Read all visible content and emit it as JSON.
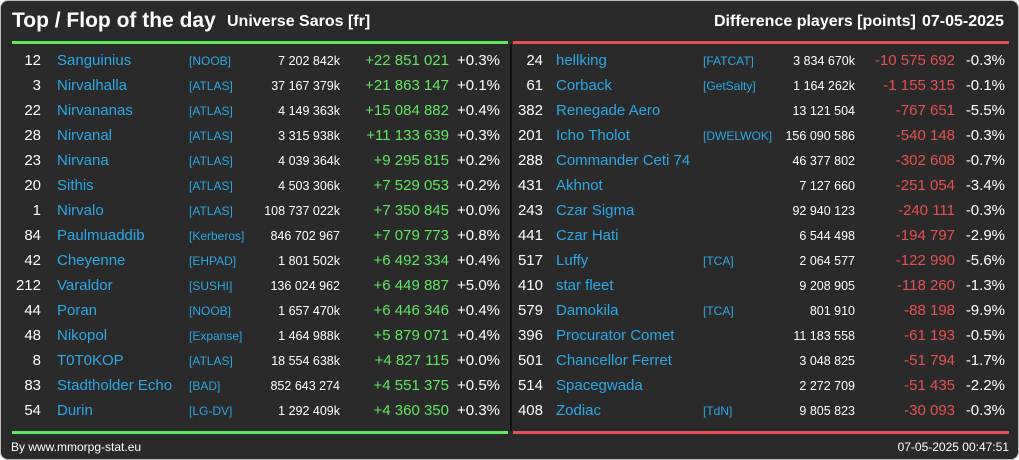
{
  "header": {
    "title": "Top / Flop of the day",
    "universe": "Universe Saros [fr]",
    "metric": "Difference players [points]",
    "date": "07-05-2025"
  },
  "colors": {
    "background": "#2a2a2a",
    "top_accent": "#5ee85e",
    "flop_accent": "#e65050",
    "link": "#29a9e8"
  },
  "top": [
    {
      "rank": "12",
      "name": "Sanguinius",
      "alliance": "[NOOB]",
      "points": "7 202 842k",
      "diff": "+22 851 021",
      "pct": "+0.3%"
    },
    {
      "rank": "3",
      "name": "Nirvalhalla",
      "alliance": "[ATLAS]",
      "points": "37 167 379k",
      "diff": "+21 863 147",
      "pct": "+0.1%"
    },
    {
      "rank": "22",
      "name": "Nirvananas",
      "alliance": "[ATLAS]",
      "points": "4 149 363k",
      "diff": "+15 084 882",
      "pct": "+0.4%"
    },
    {
      "rank": "28",
      "name": "Nirvanal",
      "alliance": "[ATLAS]",
      "points": "3 315 938k",
      "diff": "+11 133 639",
      "pct": "+0.3%"
    },
    {
      "rank": "23",
      "name": "Nirvana",
      "alliance": "[ATLAS]",
      "points": "4 039 364k",
      "diff": "+9 295 815",
      "pct": "+0.2%"
    },
    {
      "rank": "20",
      "name": "Sithis",
      "alliance": "[ATLAS]",
      "points": "4 503 306k",
      "diff": "+7 529 053",
      "pct": "+0.2%"
    },
    {
      "rank": "1",
      "name": "Nirvalo",
      "alliance": "[ATLAS]",
      "points": "108 737 022k",
      "diff": "+7 350 845",
      "pct": "+0.0%"
    },
    {
      "rank": "84",
      "name": "Paulmuaddib",
      "alliance": "[Kerberos]",
      "points": "846 702 967",
      "diff": "+7 079 773",
      "pct": "+0.8%"
    },
    {
      "rank": "42",
      "name": "Cheyenne",
      "alliance": "[EHPAD]",
      "points": "1 801 502k",
      "diff": "+6 492 334",
      "pct": "+0.4%"
    },
    {
      "rank": "212",
      "name": "Varaldor",
      "alliance": "[SUSHI]",
      "points": "136 024 962",
      "diff": "+6 449 887",
      "pct": "+5.0%"
    },
    {
      "rank": "44",
      "name": "Poran",
      "alliance": "[NOOB]",
      "points": "1 657 470k",
      "diff": "+6 446 346",
      "pct": "+0.4%"
    },
    {
      "rank": "48",
      "name": "Nikopol",
      "alliance": "[Expanse]",
      "points": "1 464 988k",
      "diff": "+5 879 071",
      "pct": "+0.4%"
    },
    {
      "rank": "8",
      "name": "T0T0KOP",
      "alliance": "[ATLAS]",
      "points": "18 554 638k",
      "diff": "+4 827 115",
      "pct": "+0.0%"
    },
    {
      "rank": "83",
      "name": "Stadtholder Echo",
      "alliance": "[BAD]",
      "points": "852 643 274",
      "diff": "+4 551 375",
      "pct": "+0.5%"
    },
    {
      "rank": "54",
      "name": "Durin",
      "alliance": "[LG-DV]",
      "points": "1 292 409k",
      "diff": "+4 360 350",
      "pct": "+0.3%"
    }
  ],
  "flop": [
    {
      "rank": "24",
      "name": "hellking",
      "alliance": "[FATCAT]",
      "points": "3 834 670k",
      "diff": "-10 575 692",
      "pct": "-0.3%"
    },
    {
      "rank": "61",
      "name": "Corback",
      "alliance": "[GetSalty]",
      "points": "1 164 262k",
      "diff": "-1 155 315",
      "pct": "-0.1%"
    },
    {
      "rank": "382",
      "name": "Renegade Aero",
      "alliance": "",
      "points": "13 121 504",
      "diff": "-767 651",
      "pct": "-5.5%"
    },
    {
      "rank": "201",
      "name": "Icho Tholot",
      "alliance": "[DWELWOK]",
      "points": "156 090 586",
      "diff": "-540 148",
      "pct": "-0.3%"
    },
    {
      "rank": "288",
      "name": "Commander Ceti 74",
      "alliance": "",
      "points": "46 377 802",
      "diff": "-302 608",
      "pct": "-0.7%"
    },
    {
      "rank": "431",
      "name": "Akhnot",
      "alliance": "",
      "points": "7 127 660",
      "diff": "-251 054",
      "pct": "-3.4%"
    },
    {
      "rank": "243",
      "name": "Czar Sigma",
      "alliance": "",
      "points": "92 940 123",
      "diff": "-240 111",
      "pct": "-0.3%"
    },
    {
      "rank": "441",
      "name": "Czar Hati",
      "alliance": "",
      "points": "6 544 498",
      "diff": "-194 797",
      "pct": "-2.9%"
    },
    {
      "rank": "517",
      "name": "Luffy",
      "alliance": "[TCA]",
      "points": "2 064 577",
      "diff": "-122 990",
      "pct": "-5.6%"
    },
    {
      "rank": "410",
      "name": "star fleet",
      "alliance": "",
      "points": "9 208 905",
      "diff": "-118 260",
      "pct": "-1.3%"
    },
    {
      "rank": "579",
      "name": "Damokila",
      "alliance": "[TCA]",
      "points": "801 910",
      "diff": "-88 198",
      "pct": "-9.9%"
    },
    {
      "rank": "396",
      "name": "Procurator Comet",
      "alliance": "",
      "points": "11 183 558",
      "diff": "-61 193",
      "pct": "-0.5%"
    },
    {
      "rank": "501",
      "name": "Chancellor Ferret",
      "alliance": "",
      "points": "3 048 825",
      "diff": "-51 794",
      "pct": "-1.7%"
    },
    {
      "rank": "514",
      "name": "Spacegwada",
      "alliance": "",
      "points": "2 272 709",
      "diff": "-51 435",
      "pct": "-2.2%"
    },
    {
      "rank": "408",
      "name": "Zodiac",
      "alliance": "[TdN]",
      "points": "9 805 823",
      "diff": "-30 093",
      "pct": "-0.3%"
    }
  ],
  "footer": {
    "credit": "By www.mmorpg-stat.eu",
    "timestamp": "07-05-2025 00:47:51"
  }
}
